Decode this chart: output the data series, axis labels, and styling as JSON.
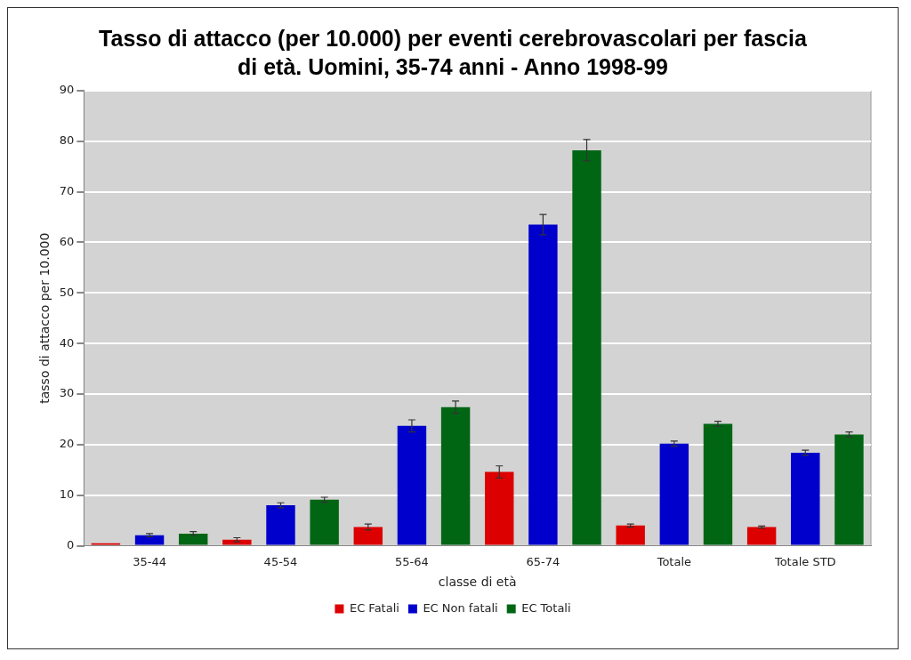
{
  "chart_data": {
    "type": "bar",
    "title": "Tasso di attacco (per 10.000) per eventi cerebrovascolari per fascia di età. Uomini, 35-74 anni  -  Anno 1998-99",
    "xlabel": "classe di età",
    "ylabel": "tasso di attacco per 10.000",
    "categories": [
      "35-44",
      "45-54",
      "55-64",
      "65-74",
      "Totale",
      "Totale STD"
    ],
    "series": [
      {
        "name": "EC Fatali",
        "color": "#dd0000",
        "values": [
          0.5,
          1.2,
          3.7,
          14.6,
          4.0,
          3.7
        ],
        "errors": [
          null,
          0.4,
          0.6,
          1.2,
          0.3,
          0.2
        ]
      },
      {
        "name": "EC Non fatali",
        "color": "#0000cc",
        "values": [
          2.1,
          8.0,
          23.7,
          63.5,
          20.2,
          18.4
        ],
        "errors": [
          0.3,
          0.5,
          1.2,
          2.0,
          0.5,
          0.5
        ]
      },
      {
        "name": "EC Totali",
        "color": "#006614",
        "values": [
          2.4,
          9.1,
          27.4,
          78.2,
          24.1,
          22.0
        ],
        "errors": [
          0.4,
          0.5,
          1.2,
          2.1,
          0.5,
          0.5
        ]
      }
    ],
    "ylim": [
      0,
      90
    ],
    "yticks": [
      0,
      10,
      20,
      30,
      40,
      50,
      60,
      70,
      80,
      90
    ],
    "grid": "y",
    "legend": "bottom"
  }
}
